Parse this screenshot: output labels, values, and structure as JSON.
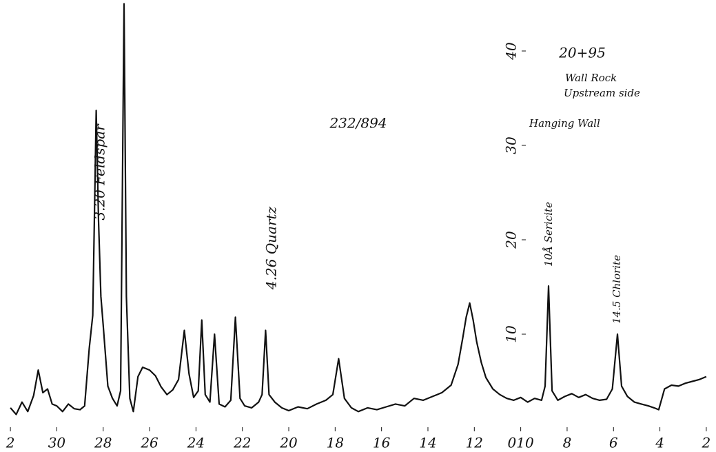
{
  "chart_data": {
    "type": "line",
    "x": [
      32,
      31.75,
      31.5,
      31.25,
      31,
      30.8,
      30.6,
      30.4,
      30.2,
      30,
      29.75,
      29.5,
      29.25,
      29,
      28.8,
      28.6,
      28.45,
      28.3,
      28.2,
      28.1,
      28,
      27.8,
      27.6,
      27.4,
      27.25,
      27.1,
      27,
      26.85,
      26.7,
      26.5,
      26.3,
      26,
      25.75,
      25.5,
      25.25,
      25,
      24.75,
      24.5,
      24.3,
      24.1,
      23.9,
      23.75,
      23.6,
      23.4,
      23.2,
      23,
      22.75,
      22.5,
      22.3,
      22.1,
      21.9,
      21.6,
      21.3,
      21.15,
      21,
      20.85,
      20.6,
      20.3,
      20,
      19.6,
      19.2,
      18.8,
      18.4,
      18.1,
      17.85,
      17.6,
      17.3,
      17,
      16.6,
      16.2,
      15.8,
      15.4,
      15,
      14.6,
      14.2,
      13.8,
      13.4,
      13,
      12.7,
      12.5,
      12.35,
      12.2,
      12.05,
      11.9,
      11.7,
      11.5,
      11.2,
      10.9,
      10.6,
      10.3,
      10,
      9.7,
      9.4,
      9.1,
      8.95,
      8.8,
      8.65,
      8.4,
      8.1,
      7.8,
      7.5,
      7.2,
      6.9,
      6.6,
      6.3,
      6.05,
      5.83,
      5.65,
      5.4,
      5.1,
      4.8,
      4.5,
      4.25,
      4.05,
      3.8,
      3.5,
      3.2,
      2.9,
      2.6,
      2.3,
      2
    ],
    "values": [
      2.2,
      1.5,
      2.8,
      1.8,
      3.5,
      6.2,
      3.8,
      4.2,
      2.6,
      2.4,
      1.8,
      2.6,
      2.1,
      2.0,
      2.4,
      8.5,
      12,
      33.7,
      22,
      14,
      11,
      4.5,
      3.2,
      2.4,
      4,
      45,
      14,
      3.2,
      1.8,
      5.5,
      6.5,
      6.2,
      5.6,
      4.4,
      3.6,
      4.1,
      5.2,
      10.4,
      5.8,
      3.3,
      4,
      11.5,
      3.6,
      2.8,
      10,
      2.6,
      2.3,
      3,
      11.8,
      3.2,
      2.4,
      2.2,
      2.8,
      3.6,
      10.4,
      3.6,
      2.8,
      2.2,
      1.9,
      2.3,
      2.1,
      2.6,
      3.0,
      3.6,
      7.4,
      3.2,
      2.2,
      1.8,
      2.2,
      2.0,
      2.3,
      2.6,
      2.4,
      3.2,
      3.0,
      3.4,
      3.8,
      4.6,
      6.8,
      9.6,
      11.8,
      13.3,
      11.5,
      9.2,
      7.0,
      5.4,
      4.2,
      3.6,
      3.2,
      3.0,
      3.3,
      2.8,
      3.2,
      3.0,
      4.5,
      15.1,
      4.0,
      3.0,
      3.4,
      3.7,
      3.3,
      3.6,
      3.2,
      3.0,
      3.1,
      4.2,
      10,
      4.5,
      3.4,
      2.8,
      2.6,
      2.4,
      2.2,
      2.0,
      4.2,
      4.6,
      4.5,
      4.8,
      5.0,
      5.2,
      5.5
    ],
    "xlim": [
      32.3,
      1.7
    ],
    "ylim": [
      0,
      45
    ],
    "xticks": [
      {
        "value": 32,
        "label": "2"
      },
      30,
      28,
      26,
      24,
      22,
      20,
      18,
      16,
      14,
      12,
      {
        "value": 10,
        "label": "010"
      },
      8,
      6,
      4,
      2
    ],
    "yticks": [
      10,
      20,
      30,
      40
    ],
    "color": "#111111",
    "annotations": [
      "3.20 Feldspar",
      "4.26 Quartz",
      "10Å Sericite",
      "14.5 Chlorite",
      "232/894",
      "20+95",
      "Wall Rock",
      "Upstream side",
      "Hanging Wall"
    ]
  }
}
